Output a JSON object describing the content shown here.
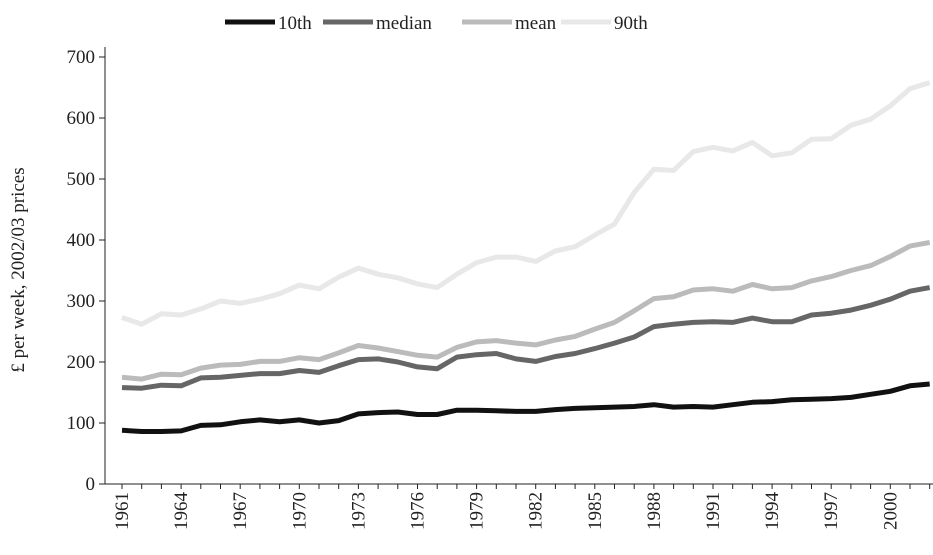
{
  "chart_data": {
    "type": "line",
    "y_label": "£ per week, 2002/03 prices",
    "categories": [
      "1961",
      null,
      null,
      "1964",
      null,
      null,
      "1967",
      null,
      null,
      "1970",
      null,
      null,
      "1973",
      null,
      null,
      "1976",
      null,
      null,
      "1979",
      null,
      null,
      "1982",
      null,
      null,
      "1985",
      null,
      null,
      "1988",
      null,
      null,
      "1991",
      null,
      null,
      "1994",
      null,
      null,
      "1997",
      null,
      null,
      "2000",
      null,
      null
    ],
    "series": [
      {
        "name": "10th",
        "color": "#111111",
        "values": [
          88,
          86,
          86,
          87,
          96,
          97,
          102,
          105,
          102,
          105,
          100,
          104,
          115,
          117,
          118,
          114,
          114,
          121,
          121,
          120,
          119,
          119,
          122,
          124,
          125,
          126,
          127,
          130,
          126,
          127,
          126,
          130,
          134,
          135,
          138,
          139,
          140,
          142,
          147,
          152,
          161,
          164
        ]
      },
      {
        "name": "median",
        "color": "#666666",
        "values": [
          158,
          157,
          162,
          161,
          174,
          175,
          178,
          181,
          181,
          186,
          183,
          194,
          204,
          205,
          200,
          192,
          189,
          208,
          212,
          214,
          205,
          201,
          209,
          214,
          222,
          231,
          241,
          258,
          262,
          265,
          266,
          265,
          272,
          266,
          266,
          277,
          280,
          285,
          293,
          303,
          316,
          322
        ]
      },
      {
        "name": "mean",
        "color": "#bbbbbb",
        "values": [
          175,
          172,
          180,
          179,
          190,
          195,
          196,
          201,
          201,
          207,
          204,
          215,
          227,
          223,
          217,
          211,
          208,
          224,
          233,
          235,
          231,
          228,
          236,
          242,
          254,
          265,
          284,
          304,
          307,
          318,
          320,
          316,
          327,
          320,
          322,
          333,
          340,
          350,
          358,
          373,
          390,
          396
        ]
      },
      {
        "name": "90th",
        "color": "#e8e8e8",
        "values": [
          273,
          262,
          279,
          277,
          287,
          300,
          296,
          303,
          312,
          326,
          320,
          339,
          354,
          344,
          338,
          328,
          322,
          344,
          363,
          372,
          372,
          365,
          382,
          389,
          408,
          426,
          478,
          516,
          514,
          545,
          552,
          546,
          560,
          538,
          543,
          565,
          566,
          588,
          598,
          620,
          648,
          658
        ]
      }
    ],
    "ylim": [
      0,
      700
    ],
    "yticks": [
      0,
      100,
      200,
      300,
      400,
      500,
      600,
      700
    ],
    "legend": "top"
  }
}
